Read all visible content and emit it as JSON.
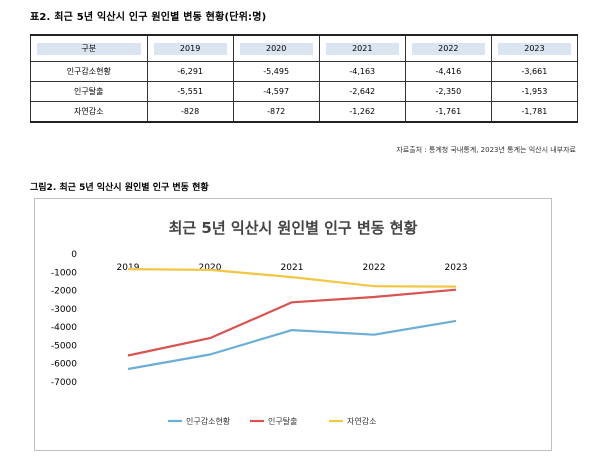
{
  "table_caption": "표2. 최근 5년 익산시 인구 원인별 변동 현황(단위:명)",
  "table": {
    "header_label": "구분",
    "years": [
      "2019",
      "2020",
      "2021",
      "2022",
      "2023"
    ],
    "rows": [
      {
        "label": "인구감소현황",
        "values": [
          "-6,291",
          "-5,495",
          "-4,163",
          "-4,416",
          "-3,661"
        ]
      },
      {
        "label": "인구탈출",
        "values": [
          "-5,551",
          "-4,597",
          "-2,642",
          "-2,350",
          "-1,953"
        ]
      },
      {
        "label": "자연감소",
        "values": [
          "-828",
          "-872",
          "-1,262",
          "-1,761",
          "-1,781"
        ]
      }
    ]
  },
  "source_note": "자료출처 : 통계청 국내통계, 2023년 통계는 익산시 내부자료",
  "figure_caption": "그림2. 최근 5년 익산시 원인별 인구 변동 현황",
  "colors": {
    "series_1": "#6baed6",
    "series_2": "#d9534f",
    "series_3": "#f2c744",
    "table_header_bg": "#dbe5f1"
  },
  "chart_data": {
    "type": "line",
    "title": "최근 5년 익산시 원인별 인구 변동 현황",
    "categories": [
      "2019",
      "2020",
      "2021",
      "2022",
      "2023"
    ],
    "ylim": [
      -7000,
      0
    ],
    "yticks": [
      "0",
      "-1000",
      "-2000",
      "-3000",
      "-4000",
      "-5000",
      "-6000",
      "-7000"
    ],
    "grid": false,
    "legend_position": "bottom",
    "series": [
      {
        "name": "인구감소현황",
        "values": [
          -6291,
          -5495,
          -4163,
          -4416,
          -3661
        ]
      },
      {
        "name": "인구탈출",
        "values": [
          -5551,
          -4597,
          -2642,
          -2350,
          -1953
        ]
      },
      {
        "name": "자연감소",
        "values": [
          -828,
          -872,
          -1262,
          -1761,
          -1781
        ]
      }
    ]
  }
}
